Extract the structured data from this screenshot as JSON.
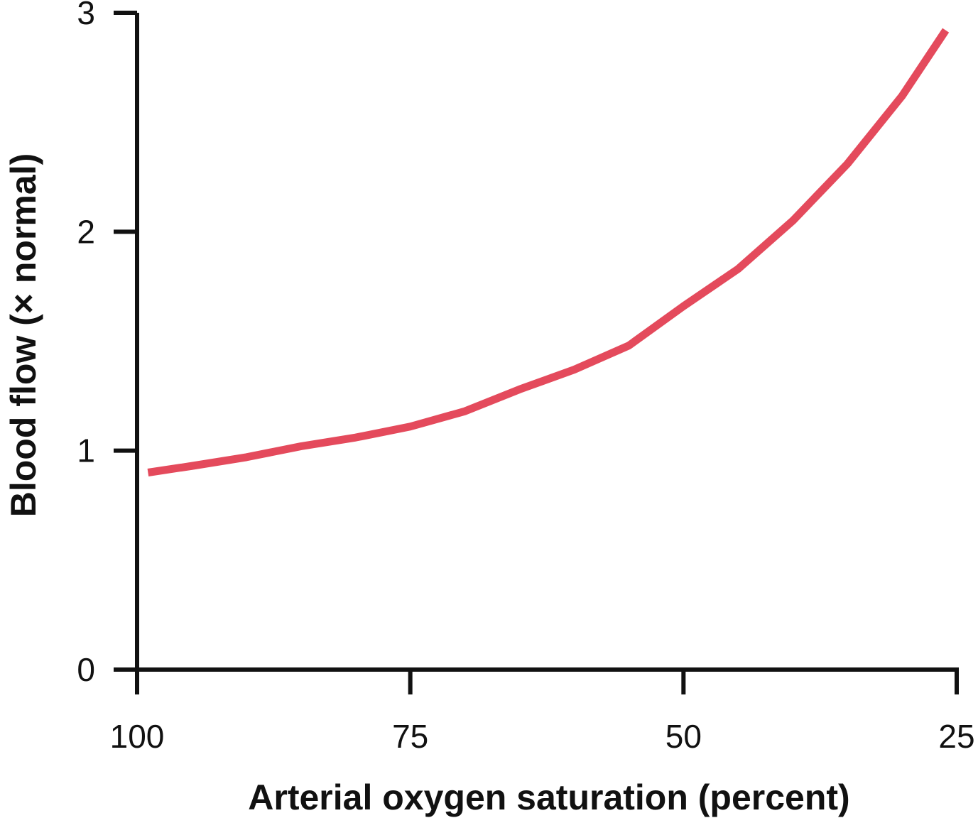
{
  "chart_data": {
    "type": "line",
    "x_label": "Arterial oxygen saturation (percent)",
    "y_label": "Blood flow (× normal)",
    "x": [
      99,
      95,
      90,
      85,
      80,
      75,
      70,
      65,
      60,
      55,
      50,
      45,
      40,
      35,
      30,
      26
    ],
    "series": [
      {
        "color": "#e44a5c",
        "values": [
          0.9,
          0.93,
          0.97,
          1.02,
          1.06,
          1.11,
          1.18,
          1.28,
          1.37,
          1.48,
          1.66,
          1.83,
          2.05,
          2.31,
          2.62,
          2.92
        ]
      }
    ],
    "xlim": [
      100,
      25
    ],
    "xticks": [
      100,
      75,
      50,
      25
    ],
    "ylim": [
      0,
      3
    ],
    "yticks": [
      0,
      1,
      2,
      3
    ]
  }
}
